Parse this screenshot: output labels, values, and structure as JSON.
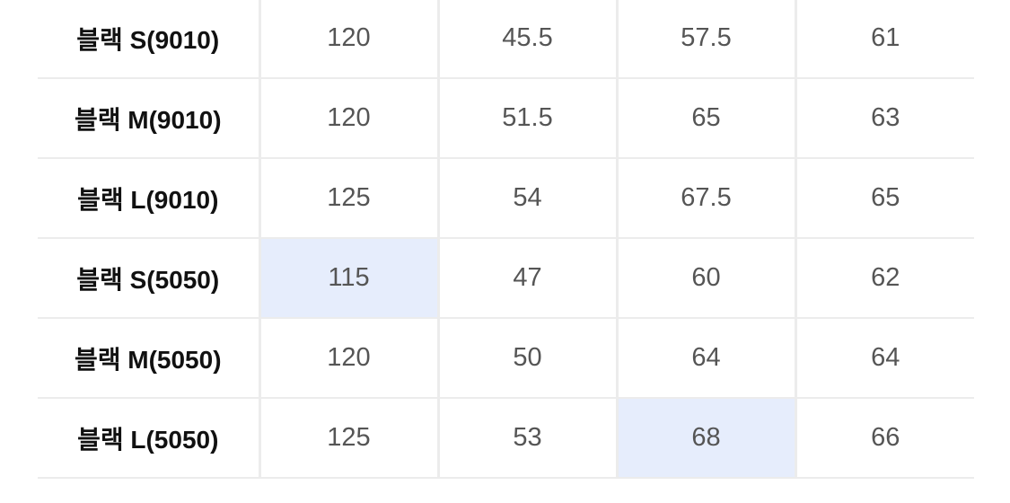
{
  "table": {
    "rows": [
      {
        "label": "블랙 S(9010)",
        "values": [
          "120",
          "45.5",
          "57.5",
          "61"
        ],
        "highlighted": []
      },
      {
        "label": "블랙 M(9010)",
        "values": [
          "120",
          "51.5",
          "65",
          "63"
        ],
        "highlighted": []
      },
      {
        "label": "블랙 L(9010)",
        "values": [
          "125",
          "54",
          "67.5",
          "65"
        ],
        "highlighted": []
      },
      {
        "label": "블랙 S(5050)",
        "values": [
          "115",
          "47",
          "60",
          "62"
        ],
        "highlighted": [
          0
        ]
      },
      {
        "label": "블랙 M(5050)",
        "values": [
          "120",
          "50",
          "64",
          "64"
        ],
        "highlighted": []
      },
      {
        "label": "블랙 L(5050)",
        "values": [
          "125",
          "53",
          "68",
          "66"
        ],
        "highlighted": [
          2
        ]
      }
    ],
    "highlight_color": "#e6edfc"
  }
}
